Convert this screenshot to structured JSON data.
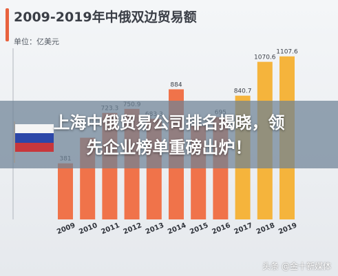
{
  "chart_data": {
    "type": "bar",
    "title": "2009-2019年中俄双边贸易额",
    "unit_label": "单位：亿美元",
    "categories": [
      "2009",
      "2010",
      "2011",
      "2012",
      "2013",
      "2014",
      "2015",
      "2016",
      "2017",
      "2018",
      "2019"
    ],
    "values": [
      381,
      555,
      723.3,
      750.9,
      683.3,
      884,
      635,
      695,
      840.7,
      1070.6,
      1107.6
    ],
    "value_labels": [
      "381",
      "",
      "723.3",
      "750.9",
      "683.3",
      "884",
      "",
      "695",
      "840.7",
      "1070.6",
      "1107.6"
    ],
    "ylim": [
      0,
      1200
    ],
    "colors": {
      "bar_primary": "#f0734a",
      "bar_recent": "#f5b43c",
      "accent": "#e8623e"
    },
    "recent_from_index": 8,
    "grid": false
  },
  "headline": {
    "line1": "上海中俄贸易公司排名揭晓，领",
    "line2": "先企业榜单重磅出炉！"
  },
  "watermark": "头条 @金十新媒体",
  "flag_icon": "russia-flag-icon"
}
